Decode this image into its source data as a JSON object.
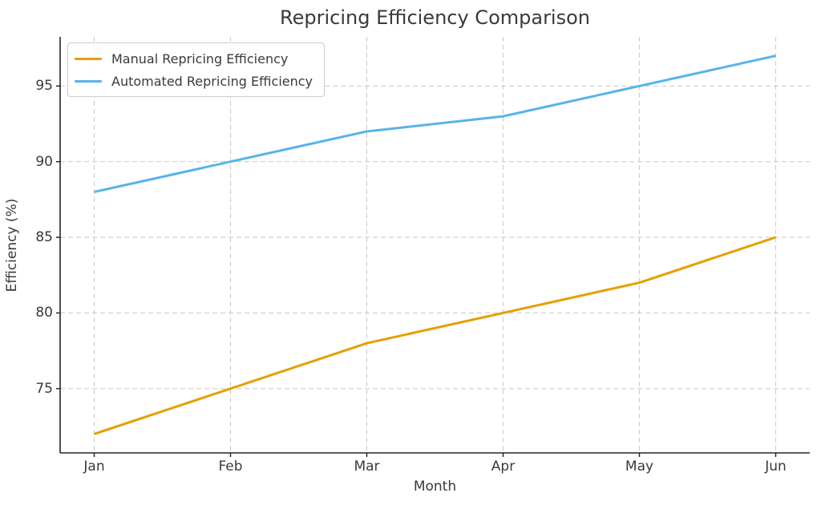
{
  "title": "Repricing Efficiency Comparison",
  "chart_data": {
    "type": "line",
    "title": "Repricing Efficiency Comparison",
    "xlabel": "Month",
    "ylabel": "Efficiency (%)",
    "categories": [
      "Jan",
      "Feb",
      "Mar",
      "Apr",
      "May",
      "Jun"
    ],
    "series": [
      {
        "name": "Manual Repricing Efficiency",
        "color": "#E69F00",
        "values": [
          72,
          75,
          78,
          80,
          82,
          85
        ]
      },
      {
        "name": "Automated Repricing Efficiency",
        "color": "#56B4E9",
        "values": [
          88,
          90,
          92,
          93,
          95,
          97
        ]
      }
    ],
    "yticks": [
      75,
      80,
      85,
      90,
      95
    ],
    "ylim": [
      70.75,
      98.25
    ],
    "x_margin_units": 0.25,
    "grid": true,
    "grid_style": "dashed",
    "legend_position": "upper left"
  },
  "colors": {
    "grid": "#cccccc",
    "spine": "#262626",
    "text": "#3a3a3a",
    "background": "#ffffff"
  }
}
